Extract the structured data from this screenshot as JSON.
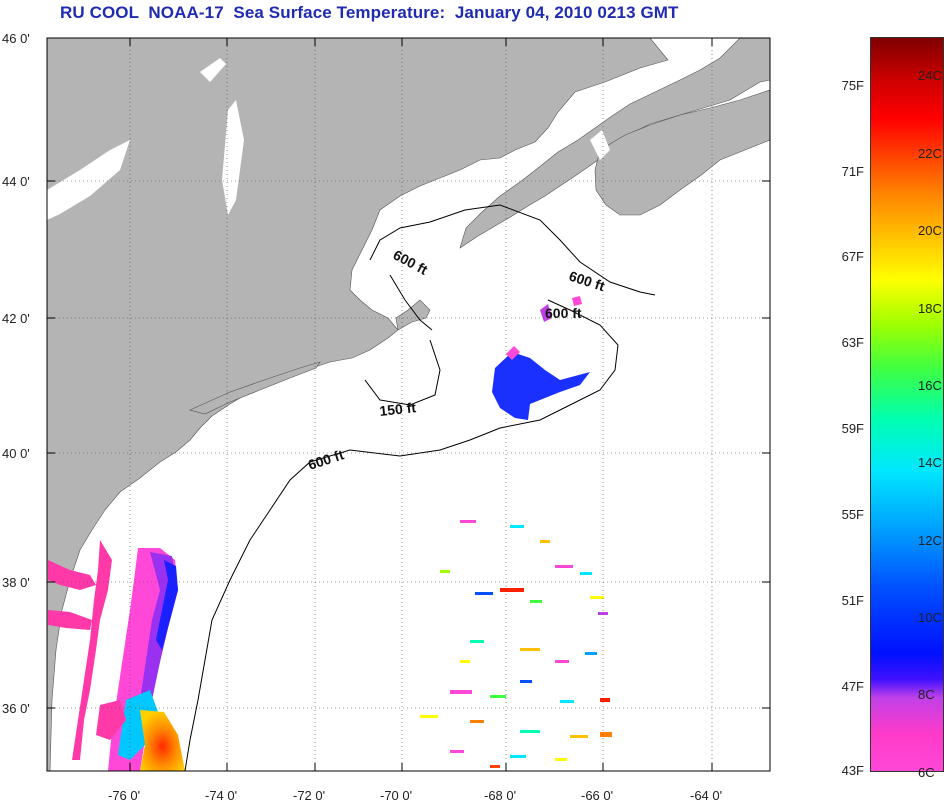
{
  "title": "RU COOL  NOAA-17  Sea Surface Temperature:  January 04, 2010 0213 GMT",
  "map": {
    "lat_labels": [
      "46 0'",
      "44 0'",
      "42 0'",
      "40 0'",
      "38 0'",
      "36 0'"
    ],
    "lon_labels": [
      "-76 0'",
      "-74 0'",
      "-72 0'",
      "-70 0'",
      "-68 0'",
      "-66 0'",
      "-64 0'"
    ],
    "contour_labels": [
      "600 ft",
      "600 ft",
      "600 ft",
      "150 ft",
      "600 ft"
    ],
    "colors": {
      "land": "#b4b4b4",
      "ocean": "#ffffff",
      "contour": "#000000"
    }
  },
  "colorbar": {
    "fahrenheit": [
      "75F",
      "71F",
      "67F",
      "63F",
      "59F",
      "55F",
      "51F",
      "47F",
      "43F"
    ],
    "celsius": [
      "24C",
      "22C",
      "20C",
      "18C",
      "16C",
      "14C",
      "12C",
      "10C",
      "8C",
      "6C"
    ]
  }
}
